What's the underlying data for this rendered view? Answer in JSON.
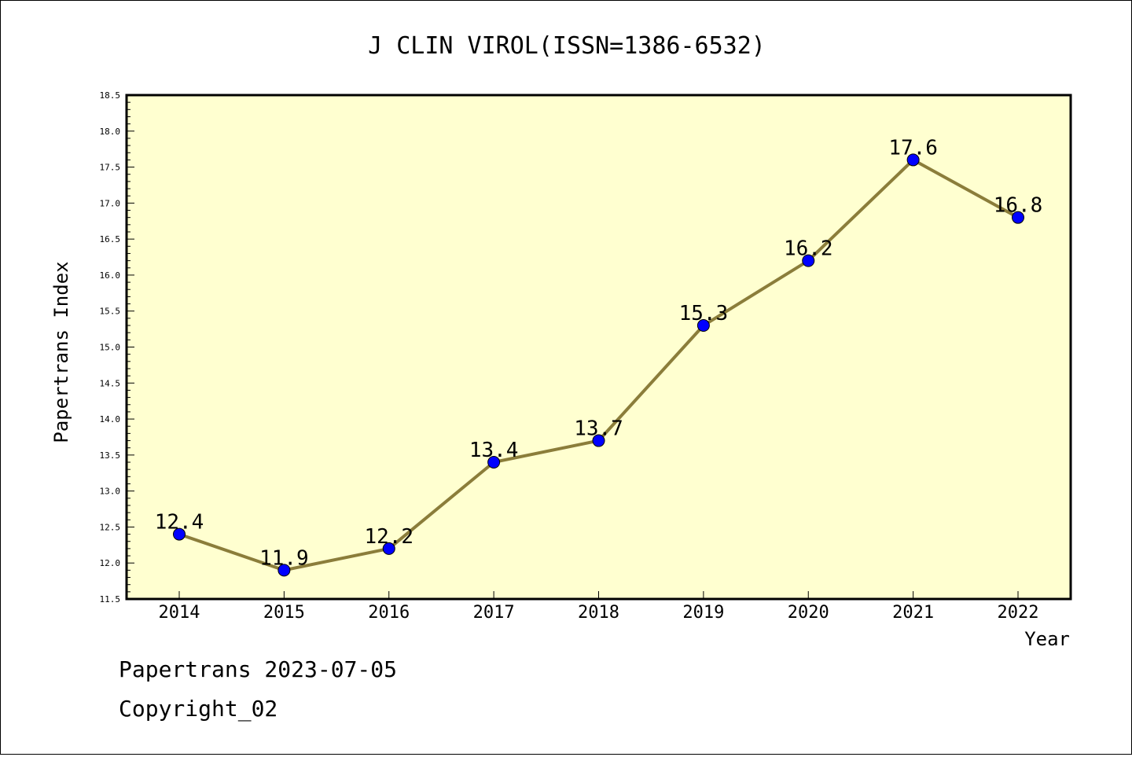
{
  "chart_data": {
    "type": "line",
    "title": "J CLIN VIROL(ISSN=1386-6532)",
    "xlabel": "Year",
    "ylabel": "Papertrans Index",
    "categories": [
      "2014",
      "2015",
      "2016",
      "2017",
      "2018",
      "2019",
      "2020",
      "2021",
      "2022"
    ],
    "series": [
      {
        "values": [
          12.4,
          11.9,
          12.2,
          13.4,
          13.7,
          15.3,
          16.2,
          17.6,
          16.8
        ],
        "labels": [
          "12.4",
          "11.9",
          "12.2",
          "13.4",
          "13.7",
          "15.3",
          "16.2",
          "17.6",
          "16.8"
        ]
      }
    ],
    "ylim": [
      11.5,
      18.5
    ],
    "yticks": [
      "11.5",
      "12.0",
      "12.5",
      "13.0",
      "13.5",
      "14.0",
      "14.5",
      "15.0",
      "15.5",
      "16.0",
      "16.5",
      "17.0",
      "17.5",
      "18.0",
      "18.5"
    ],
    "grid": false,
    "colors": {
      "plot_background": "#ffffd0",
      "line": "#8b7d3a",
      "marker": "#0000ff"
    }
  },
  "footer": {
    "line1": "Papertrans 2023-07-05",
    "line2": "Copyright_02"
  }
}
